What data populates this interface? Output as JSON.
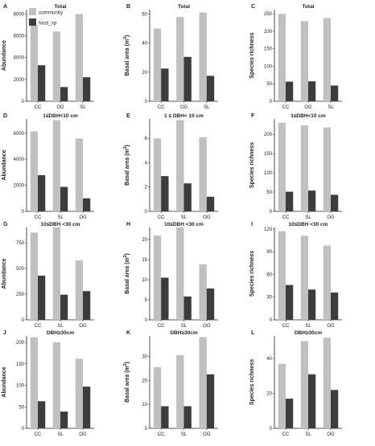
{
  "colors": {
    "community": "#c0c0c0",
    "food_sp": "#3c3c3c",
    "axis": "#222222"
  },
  "legend": [
    {
      "key": "community",
      "label": "community"
    },
    {
      "key": "food_sp",
      "label": "food_sp"
    }
  ],
  "chart_data": [
    {
      "letter": "A",
      "type": "bar",
      "title": "Total",
      "ylabel": "Abundance",
      "ylabel_sup": "",
      "categories": [
        "CC",
        "OG",
        "SL"
      ],
      "yticks": [
        0,
        2000,
        4000,
        6000,
        8000
      ],
      "ylim": [
        0,
        8400
      ],
      "series": [
        {
          "name": "community",
          "values": [
            7000,
            6400,
            8000
          ]
        },
        {
          "name": "food_sp",
          "values": [
            3300,
            1300,
            2200
          ]
        }
      ]
    },
    {
      "letter": "B",
      "type": "bar",
      "title": "Total",
      "ylabel": "Basal area (m",
      "ylabel_sup": "2",
      "categories": [
        "CC",
        "OG",
        "SL"
      ],
      "yticks": [
        0,
        20,
        40,
        60
      ],
      "ylim": [
        0,
        63
      ],
      "series": [
        {
          "name": "community",
          "values": [
            50,
            58,
            61
          ]
        },
        {
          "name": "food_sp",
          "values": [
            22.5,
            30.5,
            17.5
          ]
        }
      ]
    },
    {
      "letter": "C",
      "type": "bar",
      "title": "Total",
      "ylabel": "Species richness",
      "ylabel_sup": "",
      "categories": [
        "CC",
        "OG",
        "SL"
      ],
      "yticks": [
        0,
        50,
        100,
        150,
        200,
        250
      ],
      "ylim": [
        0,
        262
      ],
      "series": [
        {
          "name": "community",
          "values": [
            250,
            229,
            238
          ]
        },
        {
          "name": "food_sp",
          "values": [
            56,
            57,
            45
          ]
        }
      ]
    },
    {
      "letter": "D",
      "type": "bar",
      "title": "1≤DBH<10 cm",
      "ylabel": "Abundance",
      "ylabel_sup": "",
      "categories": [
        "CC",
        "SL",
        "OG"
      ],
      "yticks": [
        0,
        2000,
        4000,
        6000
      ],
      "ylim": [
        0,
        7100
      ],
      "series": [
        {
          "name": "community",
          "values": [
            6150,
            7000,
            5600
          ]
        },
        {
          "name": "food_sp",
          "values": [
            2780,
            1880,
            1000
          ]
        }
      ]
    },
    {
      "letter": "E",
      "type": "bar",
      "title": "1 ≤ DBH< 10 cm",
      "ylabel": "Basal area (m",
      "ylabel_sup": "2",
      "categories": [
        "CC",
        "SL",
        "OG"
      ],
      "yticks": [
        0,
        2,
        4,
        6
      ],
      "ylim": [
        0,
        7.6
      ],
      "series": [
        {
          "name": "community",
          "values": [
            6.0,
            7.5,
            6.1
          ]
        },
        {
          "name": "food_sp",
          "values": [
            2.9,
            2.3,
            1.2
          ]
        }
      ]
    },
    {
      "letter": "F",
      "type": "bar",
      "title": "1≤DBH<10 cm",
      "ylabel": "Species richness",
      "ylabel_sup": "",
      "categories": [
        "CC",
        "SL",
        "OG"
      ],
      "yticks": [
        0,
        50,
        100,
        150,
        200
      ],
      "ylim": [
        0,
        240
      ],
      "series": [
        {
          "name": "community",
          "values": [
            230,
            223,
            218
          ]
        },
        {
          "name": "food_sp",
          "values": [
            51,
            54,
            43
          ]
        }
      ]
    },
    {
      "letter": "G",
      "type": "bar",
      "title": "10≤DBH <30 cm",
      "ylabel": "Abundance",
      "ylabel_sup": "",
      "categories": [
        "CC",
        "SL",
        "OG"
      ],
      "yticks": [
        0,
        250,
        500,
        750
      ],
      "ylim": [
        0,
        900
      ],
      "series": [
        {
          "name": "community",
          "values": [
            850,
            900,
            580
          ]
        },
        {
          "name": "food_sp",
          "values": [
            430,
            245,
            280
          ]
        }
      ]
    },
    {
      "letter": "H",
      "type": "bar",
      "title": "10≤DBH <30 cm",
      "ylabel": "Basal area (m",
      "ylabel_sup": "2",
      "categories": [
        "CC",
        "SL",
        "OG"
      ],
      "yticks": [
        0,
        5,
        10,
        15,
        20
      ],
      "ylim": [
        0,
        23
      ],
      "series": [
        {
          "name": "community",
          "values": [
            21,
            23,
            13.8
          ]
        },
        {
          "name": "food_sp",
          "values": [
            10.5,
            5.8,
            7.8
          ]
        }
      ]
    },
    {
      "letter": "I",
      "type": "bar",
      "title": "10≤DBH <30 cm",
      "ylabel": "Species richness",
      "ylabel_sup": "",
      "categories": [
        "CC",
        "SL",
        "OG"
      ],
      "yticks": [
        0,
        30,
        60,
        90,
        120
      ],
      "ylim": [
        0,
        122
      ],
      "series": [
        {
          "name": "community",
          "values": [
            117,
            111,
            98
          ]
        },
        {
          "name": "food_sp",
          "values": [
            46,
            40,
            36
          ]
        }
      ]
    },
    {
      "letter": "J",
      "type": "bar",
      "title": "DBH≥30cm",
      "ylabel": "Abundance",
      "ylabel_sup": "",
      "categories": [
        "CC",
        "SL",
        "OG"
      ],
      "yticks": [
        0,
        50,
        100,
        150,
        200
      ],
      "ylim": [
        0,
        215
      ],
      "series": [
        {
          "name": "community",
          "values": [
            212,
            200,
            162
          ]
        },
        {
          "name": "food_sp",
          "values": [
            63,
            39,
            97
          ]
        }
      ]
    },
    {
      "letter": "K",
      "type": "bar",
      "title": "DBH≥30cm",
      "ylabel": "Basal area (m",
      "ylabel_sup": "2",
      "categories": [
        "CC",
        "SL",
        "OG"
      ],
      "yticks": [
        0,
        10,
        20,
        30
      ],
      "ylim": [
        0,
        38.5
      ],
      "series": [
        {
          "name": "community",
          "values": [
            25.5,
            30.5,
            38
          ]
        },
        {
          "name": "food_sp",
          "values": [
            9.2,
            9.2,
            22.5
          ]
        }
      ]
    },
    {
      "letter": "L",
      "type": "bar",
      "title": "DBH≥30cm",
      "ylabel": "Species richness",
      "ylabel_sup": "",
      "categories": [
        "CC",
        "SL",
        "OG"
      ],
      "yticks": [
        0,
        20,
        40
      ],
      "ylim": [
        0,
        53
      ],
      "series": [
        {
          "name": "community",
          "values": [
            37,
            50,
            52
          ]
        },
        {
          "name": "food_sp",
          "values": [
            17,
            31,
            22
          ]
        }
      ]
    }
  ]
}
